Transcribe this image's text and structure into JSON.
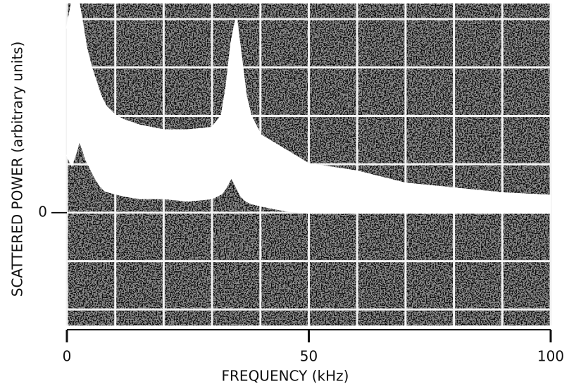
{
  "chart_data": {
    "type": "line",
    "xlabel": "FREQUENCY (kHz)",
    "ylabel": "SCATTERED POWER (arbitrary units)",
    "x": [
      0,
      1,
      2,
      2.5,
      3,
      4,
      5,
      6,
      7,
      8,
      10,
      12,
      15,
      20,
      25,
      30,
      32,
      33,
      34,
      35,
      36,
      37,
      38,
      40,
      45,
      50,
      60,
      70,
      80,
      90,
      100
    ],
    "series": [
      {
        "color": "#ffffff",
        "values": [
          3.8,
          4.3,
          4.3,
          4.3,
          4.0,
          3.4,
          3.0,
          2.7,
          2.4,
          2.2,
          2.0,
          1.9,
          1.8,
          1.7,
          1.7,
          1.75,
          2.0,
          2.6,
          3.5,
          4.0,
          3.2,
          2.4,
          2.0,
          1.6,
          1.3,
          1.0,
          0.85,
          0.6,
          0.5,
          0.4,
          0.35
        ]
      },
      {
        "color": "#ffffff",
        "values": [
          1.2,
          1.0,
          1.3,
          1.5,
          1.4,
          1.1,
          0.9,
          0.7,
          0.55,
          0.45,
          0.4,
          0.35,
          0.3,
          0.3,
          0.25,
          0.3,
          0.4,
          0.55,
          0.75,
          0.55,
          0.35,
          0.25,
          0.2,
          0.15,
          0.05,
          0,
          0,
          0,
          0,
          0,
          0
        ]
      }
    ],
    "fill_between": true,
    "xlim": [
      0,
      100
    ],
    "xticks": [
      0,
      50,
      100
    ],
    "ylim": [
      -2.33,
      4.32
    ],
    "yticks": [
      0
    ],
    "grid": true,
    "background": "#0a0a0a",
    "grid_color": "#f2f2f2"
  }
}
